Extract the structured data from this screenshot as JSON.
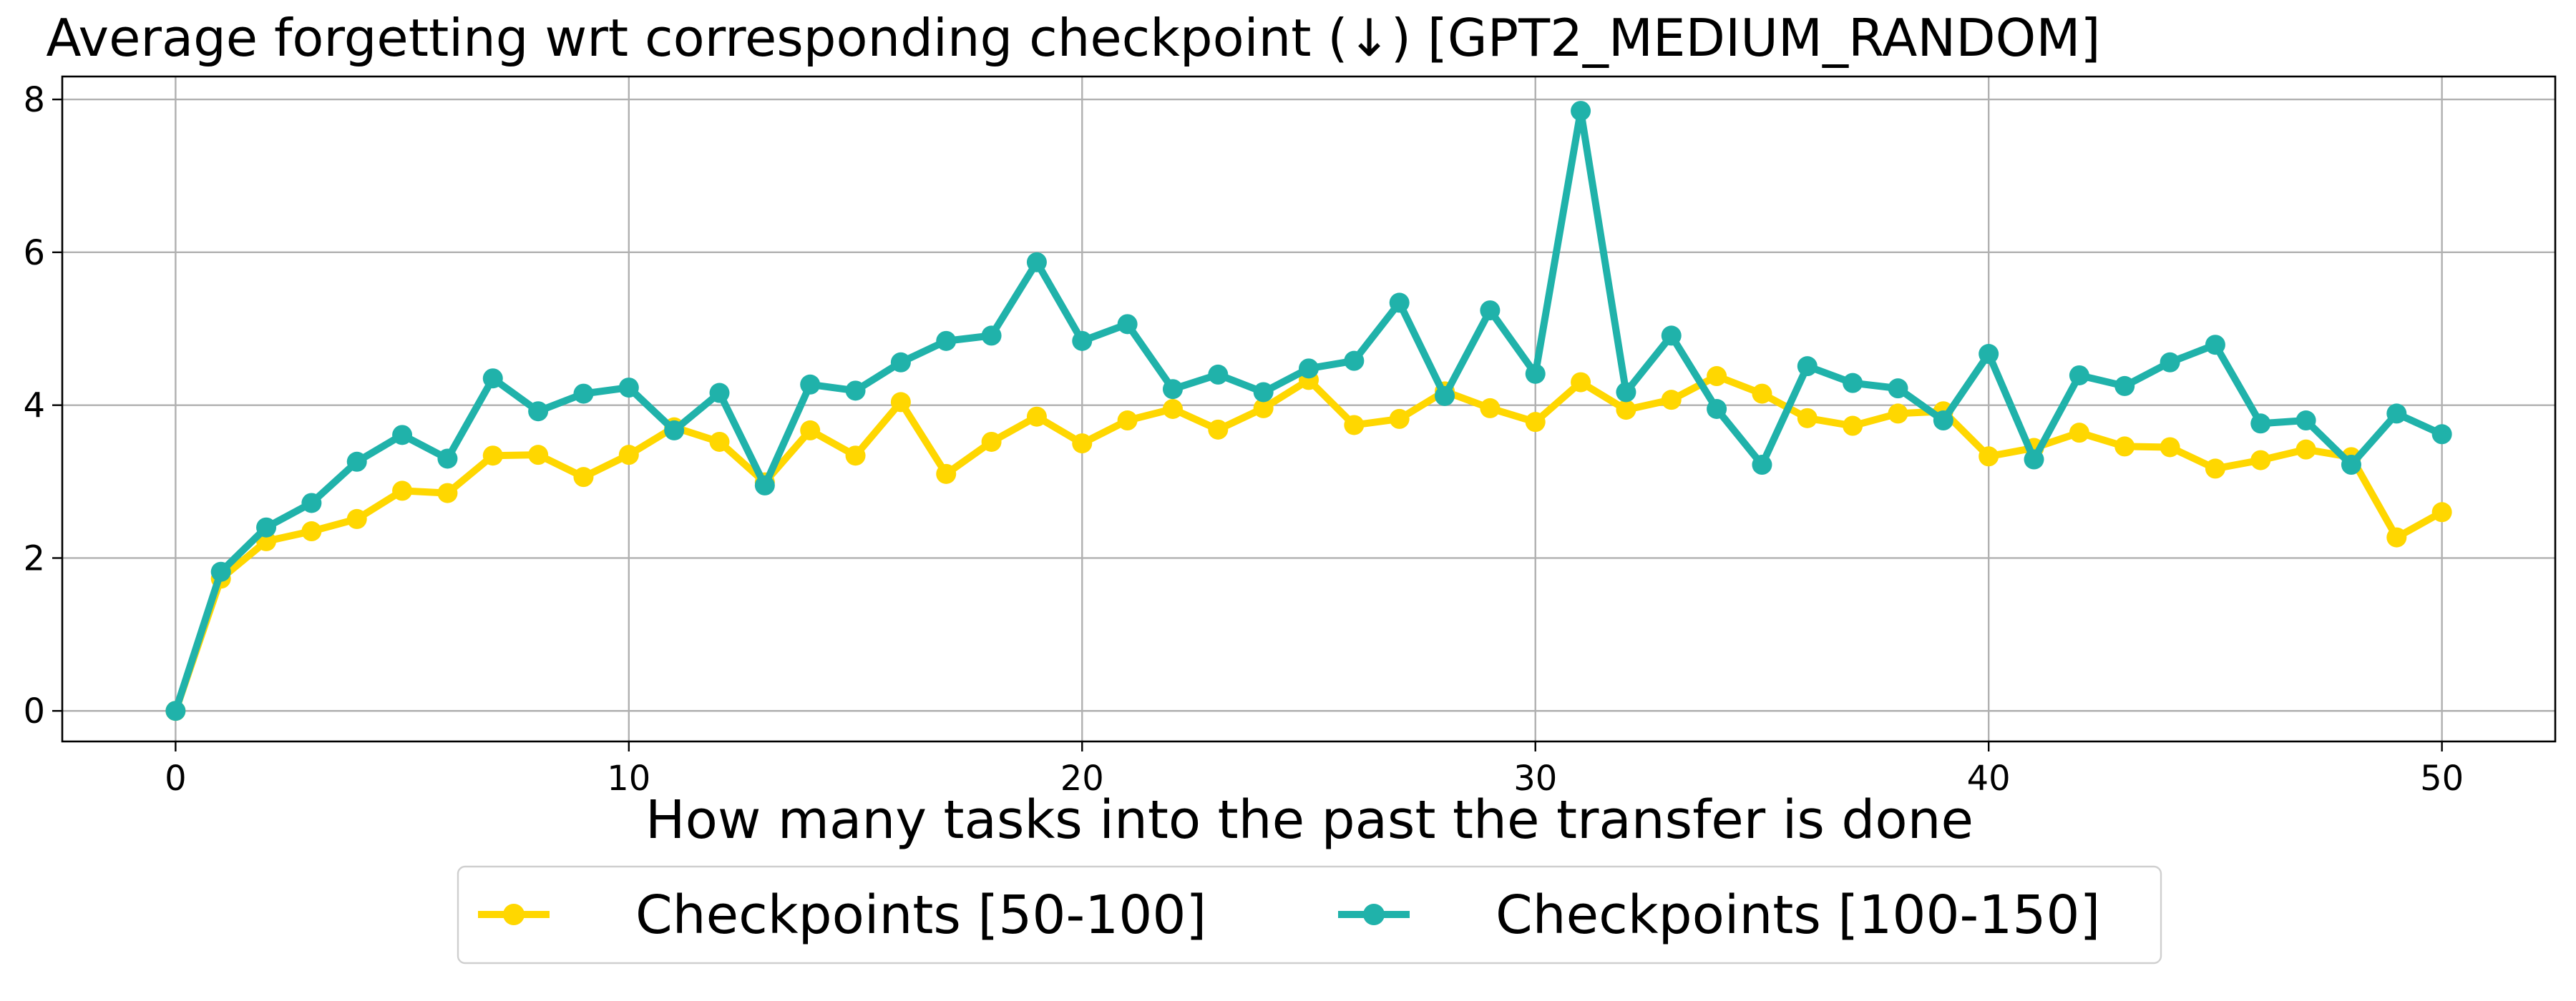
{
  "chart_data": {
    "type": "line",
    "title": "Average forgetting wrt corresponding checkpoint (↓) [GPT2_MEDIUM_RANDOM]",
    "xlabel": "How many tasks into the past the transfer is done",
    "ylabel": "",
    "xlim": [
      -2.5,
      52.5
    ],
    "ylim": [
      -0.4,
      8.3
    ],
    "xticks": [
      0,
      10,
      20,
      30,
      40,
      50
    ],
    "yticks": [
      0,
      2,
      4,
      6,
      8
    ],
    "grid": true,
    "legend_position": "bottom-center",
    "x": [
      0,
      1,
      2,
      3,
      4,
      5,
      6,
      7,
      8,
      9,
      10,
      11,
      12,
      13,
      14,
      15,
      16,
      17,
      18,
      19,
      20,
      21,
      22,
      23,
      24,
      25,
      26,
      27,
      28,
      29,
      30,
      31,
      32,
      33,
      34,
      35,
      36,
      37,
      38,
      39,
      40,
      41,
      42,
      43,
      44,
      45,
      46,
      47,
      48,
      49,
      50
    ],
    "series": [
      {
        "name": "Checkpoints [50-100]",
        "color": "#FFD700",
        "values": [
          0.0,
          1.73,
          2.22,
          2.35,
          2.51,
          2.88,
          2.85,
          3.34,
          3.35,
          3.06,
          3.35,
          3.71,
          3.52,
          2.99,
          3.67,
          3.34,
          4.04,
          3.1,
          3.52,
          3.85,
          3.5,
          3.8,
          3.95,
          3.68,
          3.96,
          4.33,
          3.74,
          3.82,
          4.18,
          3.96,
          3.78,
          4.3,
          3.94,
          4.07,
          4.38,
          4.15,
          3.83,
          3.73,
          3.89,
          3.92,
          3.33,
          3.44,
          3.64,
          3.46,
          3.45,
          3.17,
          3.28,
          3.42,
          3.32,
          2.27,
          2.6
        ]
      },
      {
        "name": "Checkpoints [100-150]",
        "color": "#20B2AA",
        "values": [
          0.0,
          1.82,
          2.4,
          2.72,
          3.26,
          3.61,
          3.3,
          4.35,
          3.92,
          4.15,
          4.23,
          3.67,
          4.16,
          2.95,
          4.27,
          4.19,
          4.56,
          4.84,
          4.91,
          5.87,
          4.84,
          5.06,
          4.21,
          4.4,
          4.17,
          4.48,
          4.58,
          5.34,
          4.12,
          5.24,
          4.41,
          7.85,
          4.17,
          4.91,
          3.95,
          3.22,
          4.51,
          4.29,
          4.22,
          3.8,
          4.67,
          3.29,
          4.39,
          4.25,
          4.56,
          4.79,
          3.76,
          3.8,
          3.22,
          3.89,
          3.62
        ]
      }
    ]
  }
}
